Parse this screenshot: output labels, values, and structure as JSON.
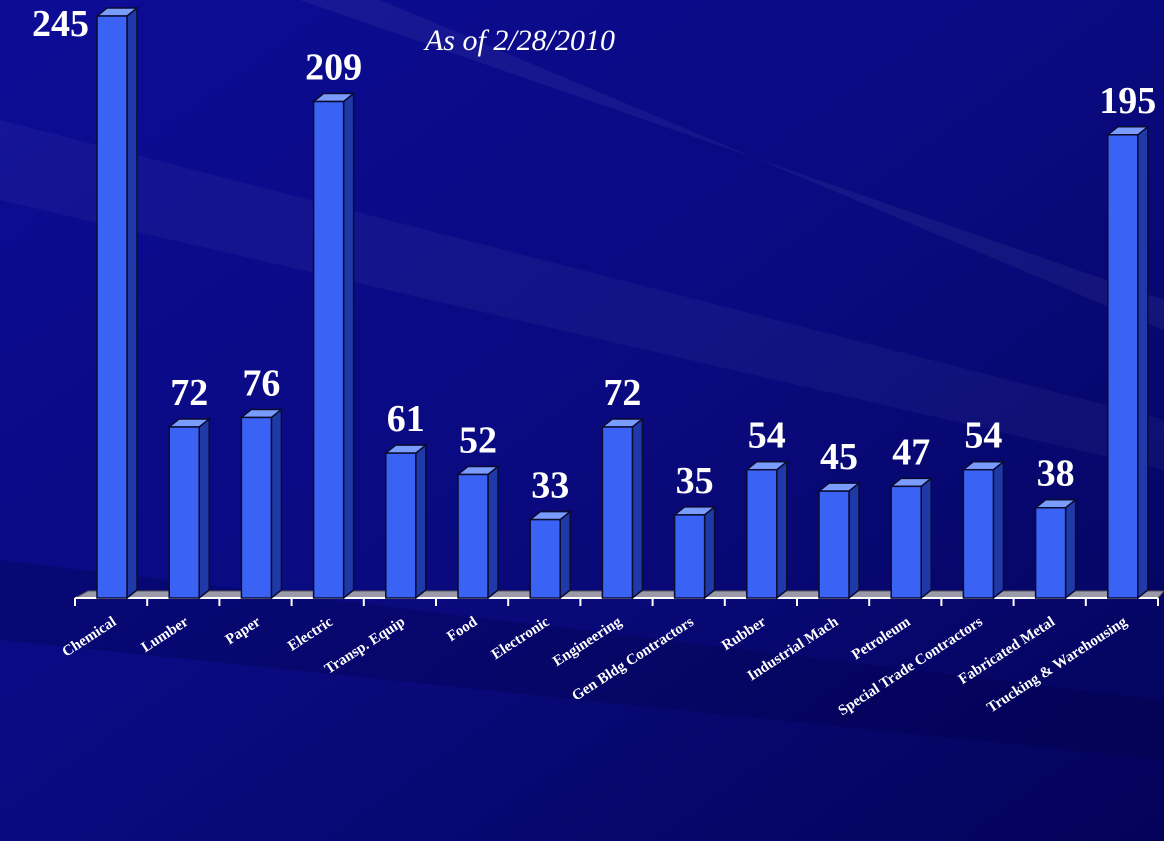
{
  "chart_data": {
    "type": "bar",
    "subtitle": "As of 2/28/2010",
    "categories": [
      "Chemical",
      "Lumber",
      "Paper",
      "Electric",
      "Transp. Equip",
      "Food",
      "Electronic",
      "Engineering",
      "Gen Bldg Contractors",
      "Rubber",
      "Industrial Mach",
      "Petroleum",
      "Special Trade Contractors",
      "Fabricated Metal",
      "Trucking & Warehousing"
    ],
    "values": [
      245,
      72,
      76,
      209,
      61,
      52,
      33,
      72,
      35,
      54,
      45,
      47,
      54,
      38,
      195
    ],
    "color": "#3a63f5"
  }
}
